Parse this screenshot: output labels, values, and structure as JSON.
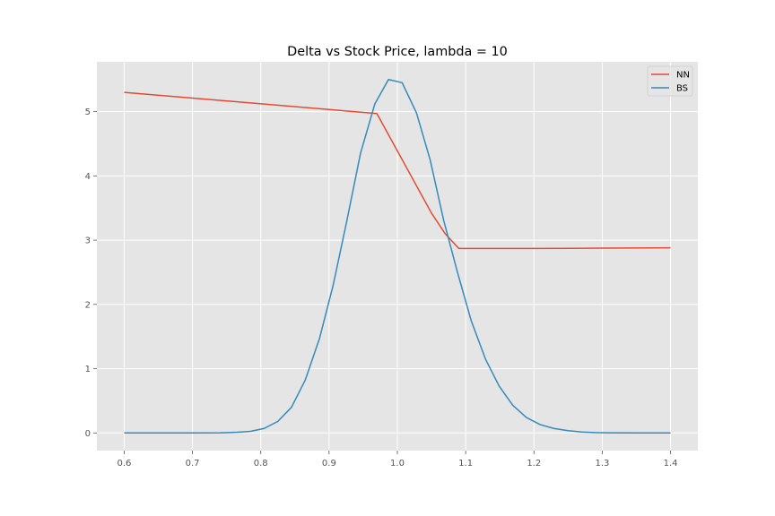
{
  "chart_data": {
    "type": "line",
    "title": "Delta vs Stock Price, lambda = 10",
    "xlabel": "",
    "ylabel": "",
    "xlim": [
      0.56,
      1.44
    ],
    "ylim": [
      -0.275,
      5.775
    ],
    "xticks": [
      0.6,
      0.7,
      0.8,
      0.9,
      1.0,
      1.1,
      1.2,
      1.3,
      1.4
    ],
    "xtick_labels": [
      "0.6",
      "0.7",
      "0.8",
      "0.9",
      "1.0",
      "1.1",
      "1.2",
      "1.3",
      "1.4"
    ],
    "yticks": [
      0,
      1,
      2,
      3,
      4,
      5
    ],
    "ytick_labels": [
      "0",
      "1",
      "2",
      "3",
      "4",
      "5"
    ],
    "grid": true,
    "legend_position": "top-right",
    "series": [
      {
        "name": "NN",
        "color": "#E24A33",
        "x": [
          0.6,
          0.97,
          1.05,
          1.07,
          1.09,
          1.2,
          1.3,
          1.4
        ],
        "y": [
          5.3,
          4.97,
          3.42,
          3.1,
          2.87,
          2.87,
          2.875,
          2.88
        ]
      },
      {
        "name": "BS",
        "color": "#348ABD",
        "x": [
          0.6,
          0.65,
          0.7,
          0.74,
          0.765,
          0.785,
          0.805,
          0.825,
          0.845,
          0.865,
          0.886,
          0.906,
          0.926,
          0.946,
          0.967,
          0.987,
          1.007,
          1.028,
          1.048,
          1.068,
          1.088,
          1.108,
          1.129,
          1.149,
          1.169,
          1.189,
          1.209,
          1.229,
          1.25,
          1.27,
          1.29,
          1.31,
          1.35,
          1.4
        ],
        "y": [
          0.0,
          0.0,
          0.0,
          0.002,
          0.01,
          0.025,
          0.07,
          0.18,
          0.4,
          0.82,
          1.47,
          2.3,
          3.3,
          4.35,
          5.12,
          5.5,
          5.45,
          4.98,
          4.25,
          3.3,
          2.5,
          1.75,
          1.15,
          0.73,
          0.43,
          0.24,
          0.13,
          0.07,
          0.035,
          0.015,
          0.006,
          0.002,
          0.0,
          0.0
        ]
      }
    ]
  }
}
